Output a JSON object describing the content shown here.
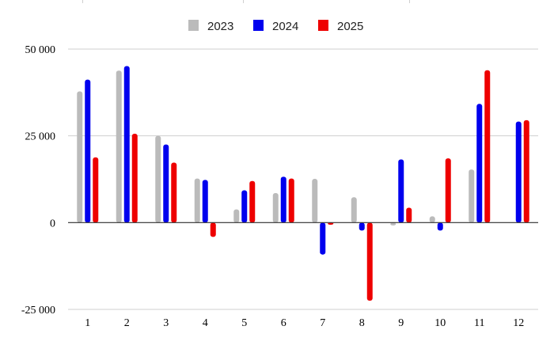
{
  "chart_data": {
    "type": "bar",
    "categories": [
      "1",
      "2",
      "3",
      "4",
      "5",
      "6",
      "7",
      "8",
      "9",
      "10",
      "11",
      "12"
    ],
    "series": [
      {
        "name": "2023",
        "color": "#bbbbbb",
        "values": [
          37800,
          43800,
          25000,
          12700,
          3800,
          8500,
          12600,
          7300,
          -800,
          1800,
          15300,
          null
        ]
      },
      {
        "name": "2024",
        "color": "#0000ee",
        "values": [
          41200,
          45100,
          22500,
          12300,
          9300,
          13200,
          -9200,
          -2300,
          18200,
          -2300,
          34200,
          29100
        ]
      },
      {
        "name": "2025",
        "color": "#ee0000",
        "values": [
          18800,
          25600,
          17300,
          -4100,
          12000,
          12700,
          -600,
          -22500,
          4300,
          18500,
          43900,
          29500
        ]
      }
    ],
    "y_ticks": [
      -25000,
      0,
      25000,
      50000
    ],
    "y_tick_labels": [
      "-25 000",
      "0",
      "25 000",
      "50 000"
    ],
    "ylim": [
      -25000,
      50000
    ],
    "legend_position": "top-center",
    "grid": true,
    "title": "",
    "xlabel": "",
    "ylabel": ""
  }
}
